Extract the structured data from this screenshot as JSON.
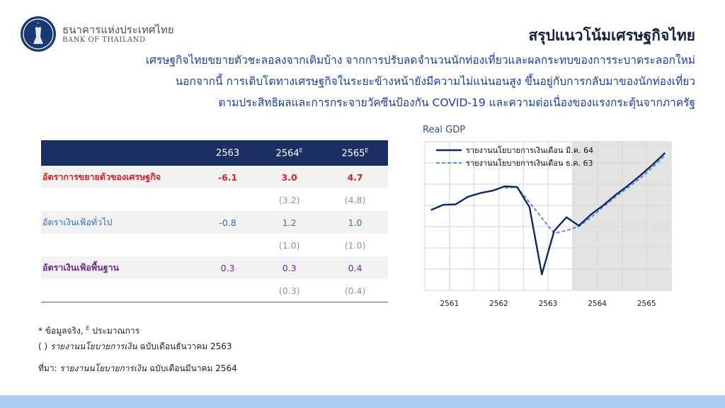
{
  "header": {
    "bank_name_th": "ธนาคารแห่งประเทศไทย",
    "bank_name_en": "BANK OF THAILAND",
    "title": "สรุปแนวโน้มเศรษฐกิจไทย"
  },
  "summary_lines": [
    "เศรษฐกิจไทยขยายตัวชะลอลงจากเดิมบ้าง จากการปรับลดจำนวนนักท่องเที่ยวและผลกระทบของการระบาดระลอกใหม่",
    "นอกจากนี้ การเติบโตทางเศรษฐกิจในระยะข้างหน้ายังมีความไม่แน่นอนสูง ขึ้นอยู่กับการกลับมาของนักท่องเที่ยว",
    "ตามประสิทธิผลและการกระจายวัคซีนป้องกัน COVID-19 และความต่อเนื่องของแรงกระตุ้นจากภาครัฐ"
  ],
  "table": {
    "headers": [
      "2563",
      "2564",
      "2565"
    ],
    "header_sup": [
      "",
      "E",
      "E"
    ],
    "rows": [
      {
        "label": "อัตราการขยายตัวของเศรษฐกิจ",
        "values": [
          "-6.1",
          "3.0",
          "4.7"
        ],
        "prev": [
          "",
          "(3.2)",
          "(4.8)"
        ]
      },
      {
        "label": "อัตราเงินเฟ้อทั่วไป",
        "values": [
          "-0.8",
          "1.2",
          "1.0"
        ],
        "prev": [
          "",
          "(1.0)",
          "(1.0)"
        ]
      },
      {
        "label": "อัตราเงินเฟ้อพื้นฐาน",
        "values": [
          "0.3",
          "0.3",
          "0.4"
        ],
        "prev": [
          "",
          "(0.3)",
          "(0.4)"
        ]
      }
    ]
  },
  "notes": {
    "line1": "* ข้อมูลจริง, ",
    "line1_sup": "E",
    "line1_end": " ประมาณการ",
    "line2_prefix": "(   ) ",
    "line2_italic": "รายงานนโยบายการเงิน",
    "line2_rest": " ฉบับเดือนธันวาคม 2563",
    "source_prefix": "ที่มา: ",
    "source_italic": "รายงานนโยบายการเงิน",
    "source_rest": " ฉบับเดือนมีนาคม 2564"
  },
  "chart_data": {
    "type": "line",
    "title": "Real GDP",
    "x_labels": [
      "2561",
      "2562",
      "2563",
      "2564",
      "2565"
    ],
    "forecast_shaded_from": "2564",
    "series": [
      {
        "name": "รายงานนโยบายการเงินเดือน  มี.ค. 64",
        "style": "solid",
        "color": "#0d2a5e",
        "values": [
          {
            "q": 0,
            "v": 100.0
          },
          {
            "q": 1,
            "v": 101.3
          },
          {
            "q": 2,
            "v": 101.4
          },
          {
            "q": 3,
            "v": 103.3
          },
          {
            "q": 4,
            "v": 104.2
          },
          {
            "q": 5,
            "v": 104.8
          },
          {
            "q": 6,
            "v": 105.9
          },
          {
            "q": 7,
            "v": 105.7
          },
          {
            "q": 8,
            "v": 100.7
          },
          {
            "q": 9,
            "v": 84.0
          },
          {
            "q": 10,
            "v": 94.8
          },
          {
            "q": 11,
            "v": 98.2
          },
          {
            "q": 12,
            "v": 96.1
          },
          {
            "q": 13,
            "v": 98.9
          },
          {
            "q": 14,
            "v": 101.2
          },
          {
            "q": 15,
            "v": 103.8
          },
          {
            "q": 16,
            "v": 106.1
          },
          {
            "q": 17,
            "v": 108.6
          },
          {
            "q": 18,
            "v": 111.3
          },
          {
            "q": 19,
            "v": 114.2
          }
        ]
      },
      {
        "name": "รายงานนโยบายการเงินเดือน  ธ.ค. 63",
        "style": "dashed",
        "color": "#5b8fd6",
        "values": [
          {
            "q": 6,
            "v": 105.5
          },
          {
            "q": 7,
            "v": 105.7
          },
          {
            "q": 10,
            "v": 94.2
          },
          {
            "q": 11,
            "v": 94.9
          },
          {
            "q": 12,
            "v": 95.9
          },
          {
            "q": 13,
            "v": 98.2
          },
          {
            "q": 14,
            "v": 100.8
          },
          {
            "q": 15,
            "v": 103.3
          },
          {
            "q": 16,
            "v": 105.6
          },
          {
            "q": 17,
            "v": 107.9
          },
          {
            "q": 18,
            "v": 110.6
          },
          {
            "q": 19,
            "v": 113.6
          }
        ]
      }
    ],
    "ylim": [
      80,
      117
    ],
    "grid": true,
    "legend_placement": "top-left"
  }
}
